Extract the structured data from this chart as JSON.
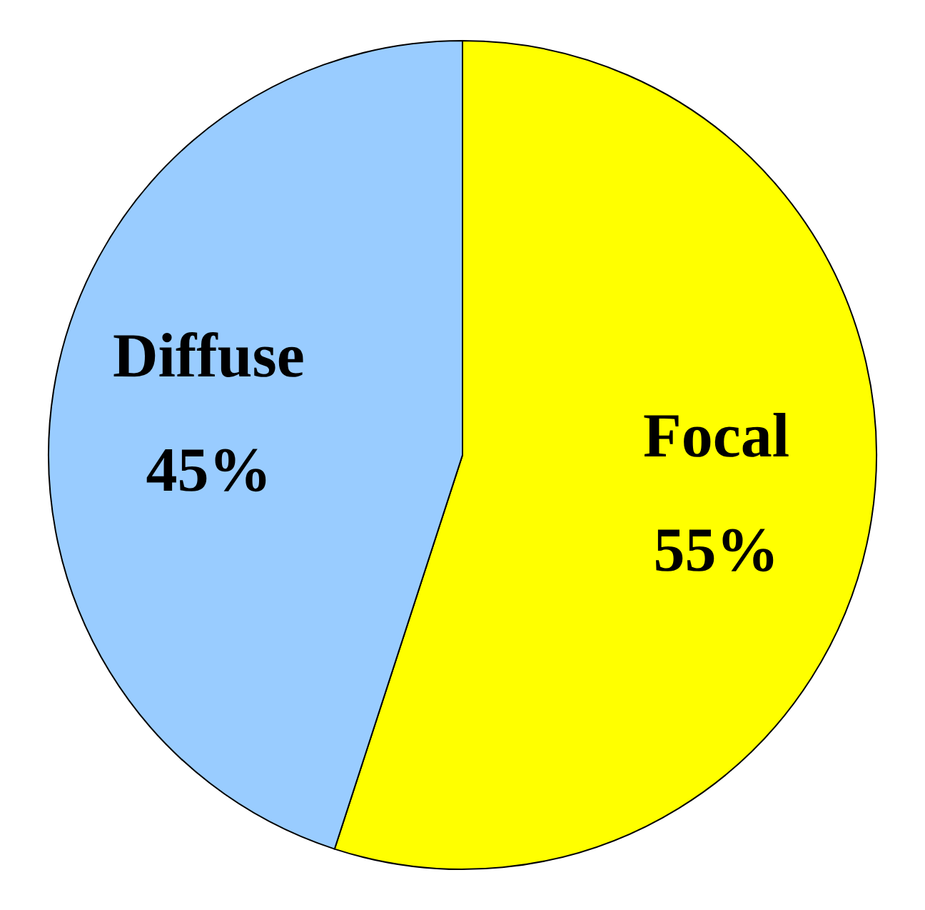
{
  "chart_data": {
    "type": "pie",
    "categories": [
      "Focal",
      "Diffuse"
    ],
    "values": [
      55,
      45
    ],
    "colors": [
      "#ffff00",
      "#99ccff"
    ],
    "value_labels": [
      "55%",
      "45%"
    ]
  }
}
